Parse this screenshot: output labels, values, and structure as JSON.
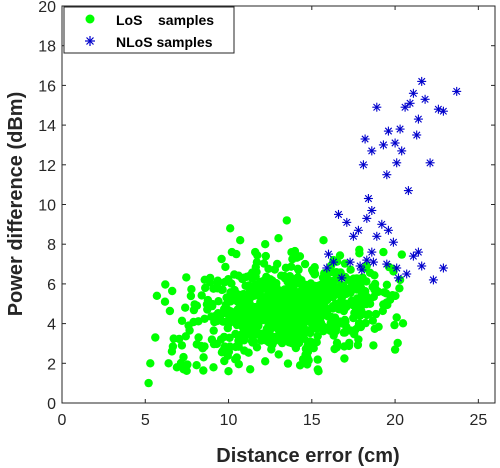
{
  "chart_data": {
    "type": "scatter",
    "title": "",
    "xlabel": "Distance error (cm)",
    "ylabel": "Power difference (dBm)",
    "xlim": [
      0,
      26
    ],
    "ylim": [
      0,
      20
    ],
    "xticks": [
      0,
      5,
      10,
      15,
      20,
      25
    ],
    "yticks": [
      0,
      2,
      4,
      6,
      8,
      10,
      12,
      14,
      16,
      18,
      20
    ],
    "grid": false,
    "legend_position": "top-left",
    "series": [
      {
        "name": "LoS    samples",
        "marker": "filled-circle",
        "color": "#00ff00",
        "cluster": {
          "center": [
            13.5,
            4.7
          ],
          "spread": [
            2.8,
            1.1
          ],
          "count": 850,
          "x_range": [
            5,
            20.5
          ],
          "y_range": [
            0.9,
            9.3
          ]
        },
        "points": [
          [
            5.2,
            1.0
          ],
          [
            5.3,
            2.0
          ],
          [
            5.7,
            5.4
          ],
          [
            5.6,
            3.3
          ],
          [
            6.4,
            2.0
          ],
          [
            6.9,
            1.8
          ],
          [
            7.3,
            1.7
          ],
          [
            6.6,
            2.6
          ],
          [
            7.2,
            2.9
          ],
          [
            7.6,
            3.9
          ],
          [
            8.2,
            3.3
          ],
          [
            7.4,
            4.8
          ],
          [
            8.1,
            4.9
          ],
          [
            8.5,
            2.3
          ],
          [
            8.6,
            5.8
          ],
          [
            8.9,
            6.3
          ],
          [
            9.2,
            4.1
          ],
          [
            9.1,
            1.8
          ],
          [
            9.6,
            5.7
          ],
          [
            10.0,
            1.6
          ],
          [
            10.2,
            7.6
          ],
          [
            10.1,
            8.8
          ],
          [
            10.7,
            8.2
          ],
          [
            11.6,
            7.6
          ],
          [
            12.2,
            8.0
          ],
          [
            12.6,
            3.3
          ],
          [
            12.9,
            3.8
          ],
          [
            13.0,
            8.3
          ],
          [
            13.5,
            9.2
          ],
          [
            14.2,
            6.7
          ],
          [
            14.6,
            7.0
          ],
          [
            14.9,
            3.1
          ],
          [
            15.2,
            6.5
          ],
          [
            15.4,
            1.6
          ],
          [
            15.7,
            8.2
          ],
          [
            16.0,
            6.2
          ],
          [
            16.3,
            7.2
          ],
          [
            16.5,
            2.8
          ],
          [
            16.9,
            5.9
          ],
          [
            17.2,
            6.2
          ],
          [
            17.6,
            5.8
          ],
          [
            17.9,
            4.4
          ],
          [
            18.2,
            6.8
          ],
          [
            18.5,
            5.0
          ],
          [
            18.8,
            6.0
          ],
          [
            19.0,
            5.6
          ],
          [
            19.3,
            7.6
          ],
          [
            19.7,
            5.2
          ],
          [
            20.0,
            5.4
          ],
          [
            20.3,
            6.2
          ],
          [
            18.7,
            2.9
          ],
          [
            17.8,
            3.2
          ],
          [
            14.3,
            1.9
          ],
          [
            12.2,
            2.1
          ],
          [
            11.3,
            1.7
          ],
          [
            10.4,
            2.2
          ]
        ]
      },
      {
        "name": "NLoS samples",
        "marker": "asterisk",
        "color": "#0000cc",
        "points": [
          [
            15.9,
            6.8
          ],
          [
            16.0,
            7.5
          ],
          [
            16.3,
            7.1
          ],
          [
            16.8,
            6.3
          ],
          [
            17.3,
            7.1
          ],
          [
            17.5,
            8.4
          ],
          [
            18.0,
            6.7
          ],
          [
            18.3,
            7.2
          ],
          [
            18.9,
            8.4
          ],
          [
            19.5,
            7.0
          ],
          [
            20.2,
            6.3
          ],
          [
            20.7,
            6.5
          ],
          [
            21.1,
            7.4
          ],
          [
            21.6,
            6.9
          ],
          [
            22.3,
            6.2
          ],
          [
            22.9,
            6.8
          ],
          [
            21.4,
            7.6
          ],
          [
            19.9,
            8.1
          ],
          [
            18.6,
            7.6
          ],
          [
            17.9,
            6.9
          ],
          [
            17.1,
            9.1
          ],
          [
            16.6,
            9.5
          ],
          [
            17.8,
            8.7
          ],
          [
            18.3,
            9.3
          ],
          [
            18.4,
            10.3
          ],
          [
            18.6,
            9.7
          ],
          [
            19.2,
            9.0
          ],
          [
            19.6,
            8.7
          ],
          [
            20.1,
            6.8
          ],
          [
            18.7,
            7.1
          ],
          [
            18.2,
            13.3
          ],
          [
            18.6,
            12.7
          ],
          [
            18.9,
            14.9
          ],
          [
            19.3,
            13.0
          ],
          [
            19.6,
            13.7
          ],
          [
            20.0,
            13.1
          ],
          [
            20.3,
            13.8
          ],
          [
            20.6,
            14.9
          ],
          [
            20.9,
            15.1
          ],
          [
            21.1,
            15.6
          ],
          [
            21.4,
            14.3
          ],
          [
            21.8,
            15.3
          ],
          [
            22.1,
            12.1
          ],
          [
            22.6,
            14.8
          ],
          [
            22.9,
            14.7
          ],
          [
            23.7,
            15.7
          ],
          [
            21.3,
            13.5
          ],
          [
            20.8,
            10.7
          ],
          [
            20.1,
            12.1
          ],
          [
            19.5,
            11.5
          ],
          [
            21.6,
            16.2
          ],
          [
            20.4,
            12.7
          ],
          [
            18.1,
            12.0
          ]
        ]
      }
    ]
  }
}
